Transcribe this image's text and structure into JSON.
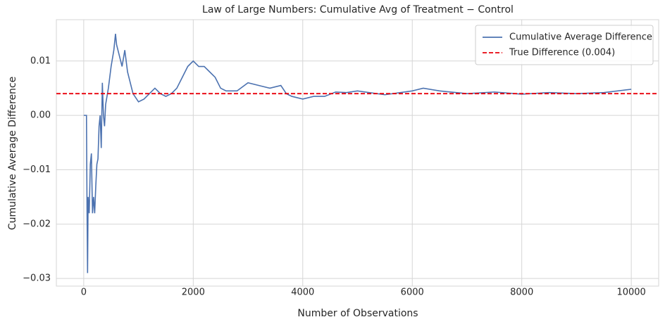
{
  "chart_data": {
    "type": "line",
    "title": "Law of Large Numbers: Cumulative Avg of Treatment − Control",
    "xlabel": "Number of Observations",
    "ylabel": "Cumulative Average Difference",
    "x": [
      0,
      50,
      60,
      70,
      80,
      100,
      120,
      140,
      160,
      180,
      200,
      220,
      240,
      260,
      280,
      300,
      320,
      340,
      360,
      380,
      400,
      450,
      500,
      550,
      580,
      600,
      650,
      700,
      750,
      800,
      900,
      1000,
      1100,
      1200,
      1300,
      1400,
      1500,
      1600,
      1700,
      1800,
      1900,
      2000,
      2100,
      2200,
      2300,
      2400,
      2500,
      2600,
      2800,
      3000,
      3200,
      3400,
      3600,
      3700,
      3800,
      4000,
      4200,
      4400,
      4600,
      4800,
      5000,
      5500,
      6000,
      6200,
      6500,
      7000,
      7500,
      8000,
      8500,
      9000,
      9500,
      10000
    ],
    "series": [
      {
        "name": "Cumulative Average Difference",
        "color": "#4c72b0",
        "values": [
          0,
          0,
          -0.017,
          -0.029,
          -0.015,
          -0.018,
          -0.009,
          -0.007,
          -0.018,
          -0.015,
          -0.018,
          -0.013,
          -0.009,
          -0.008,
          -0.002,
          0,
          -0.006,
          0.006,
          0,
          -0.002,
          0.002,
          0.005,
          0.009,
          0.012,
          0.015,
          0.013,
          0.011,
          0.009,
          0.012,
          0.008,
          0.004,
          0.0025,
          0.003,
          0.004,
          0.005,
          0.004,
          0.0035,
          0.004,
          0.005,
          0.007,
          0.009,
          0.01,
          0.009,
          0.009,
          0.008,
          0.007,
          0.005,
          0.0045,
          0.0045,
          0.006,
          0.0055,
          0.005,
          0.0055,
          0.004,
          0.0035,
          0.003,
          0.0035,
          0.0035,
          0.0043,
          0.0042,
          0.0045,
          0.0038,
          0.0045,
          0.005,
          0.0045,
          0.004,
          0.0043,
          0.0039,
          0.0042,
          0.004,
          0.0042,
          0.0048
        ]
      }
    ],
    "hlines": [
      {
        "name": "True Difference (0.004)",
        "value": 0.004,
        "color": "#e8000b"
      }
    ],
    "xlim": [
      -500,
      10500
    ],
    "xticks": [
      0,
      2000,
      4000,
      6000,
      8000,
      10000
    ],
    "ylim": [
      -0.0314,
      0.0176
    ],
    "yticks": [
      {
        "value": -0.03,
        "label": "−0.03"
      },
      {
        "value": -0.02,
        "label": "−0.02"
      },
      {
        "value": -0.01,
        "label": "−0.01"
      },
      {
        "value": 0,
        "label": "0.00"
      },
      0.01
    ],
    "grid": true,
    "legend": "upper right"
  }
}
